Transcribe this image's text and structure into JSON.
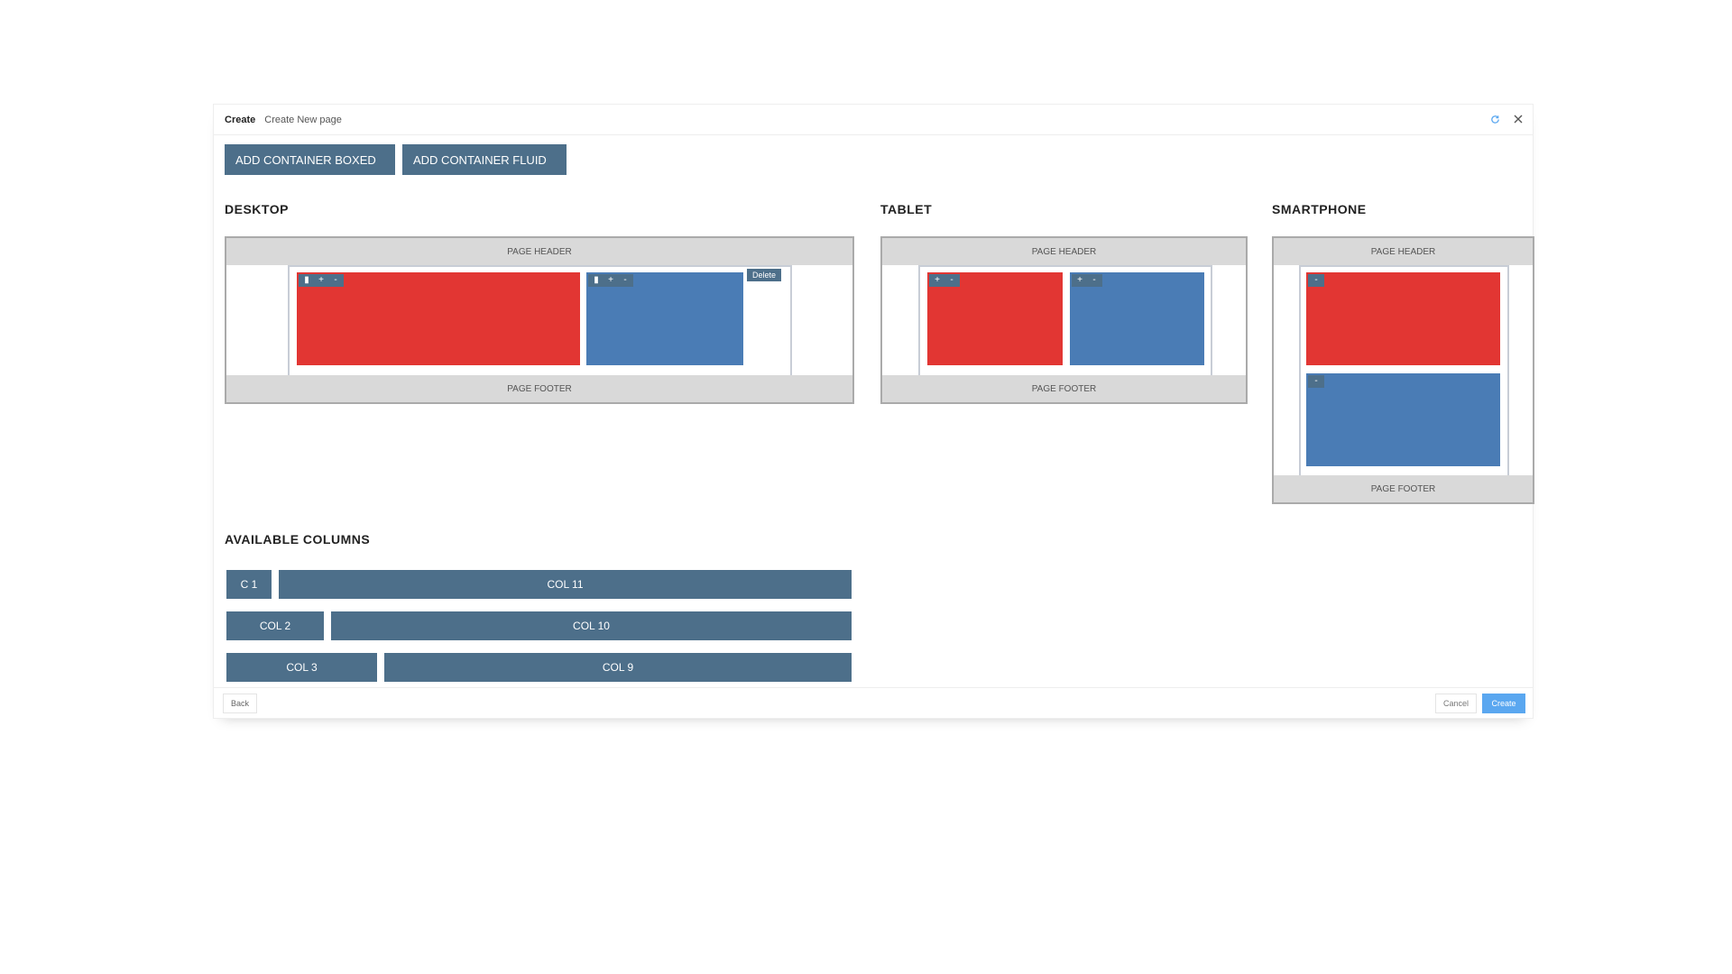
{
  "dialog": {
    "title": "Create",
    "subtitle": "Create New page",
    "icons": [
      "refresh-icon",
      "close-icon"
    ]
  },
  "toolbar": {
    "add_boxed_label": "ADD CONTAINER BOXED",
    "add_fluid_label": "ADD CONTAINER FLUID"
  },
  "sections": {
    "desktop": "DESKTOP",
    "tablet": "TABLET",
    "smartphone": "SMARTPHONE",
    "available_columns": "AVAILABLE COLUMNS"
  },
  "device": {
    "header_label": "PAGE HEADER",
    "footer_label": "PAGE FOOTER",
    "delete_label": "Delete"
  },
  "columns": {
    "row1": [
      "C 1",
      "COL 11"
    ],
    "row2": [
      "COL 2",
      "COL 10"
    ],
    "row3": [
      "COL 3",
      "COL 9"
    ]
  },
  "footer": {
    "back_label": "Back",
    "cancel_label": "Cancel",
    "create_label": "Create"
  },
  "colors": {
    "accent": "#4d6f8a",
    "red_column": "#e23633",
    "blue_column": "#4a7cb5",
    "primary_button": "#5aa7f0"
  }
}
